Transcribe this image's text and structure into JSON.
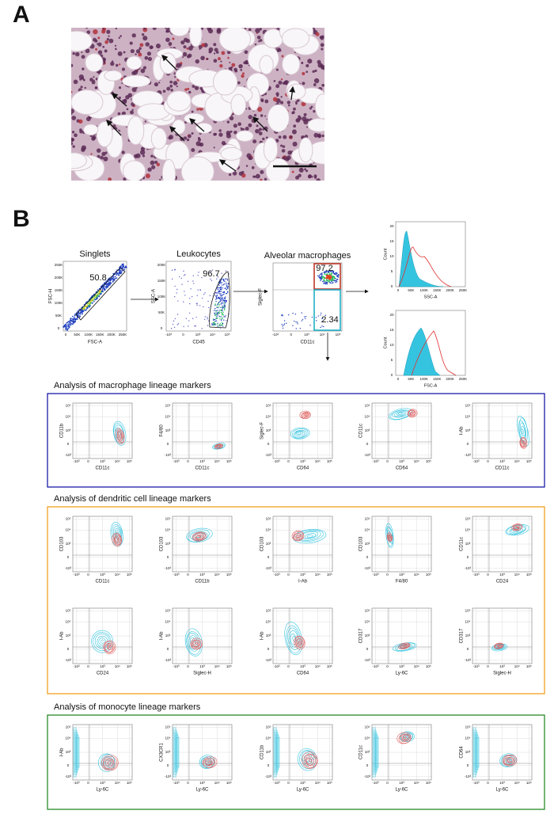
{
  "panel_a": {
    "label": "A"
  },
  "panel_b": {
    "label": "B",
    "gating": [
      {
        "title": "Singlets",
        "x_label": "FSC-A",
        "y_label": "FSC-H",
        "gates": [
          "50.8"
        ]
      },
      {
        "title": "Leukocytes",
        "x_label": "CD45",
        "y_label": "SSC-A",
        "gates": [
          "96.7"
        ]
      },
      {
        "title": "Alveolar macrophages",
        "x_label": "CD11c",
        "y_label": "Siglec-F",
        "gates": [
          "97.2",
          "2.34"
        ]
      }
    ],
    "linear_ticks": [
      "0",
      "50K",
      "100K",
      "150K",
      "200K",
      "250K"
    ],
    "log_ticks": [
      "-10³",
      "0",
      "10³",
      "10⁴",
      "10⁵"
    ],
    "histograms": [
      {
        "x_label": "SSC-A",
        "y_label": "Count"
      },
      {
        "x_label": "FSC-A",
        "y_label": "Count"
      }
    ],
    "count_ticks": [
      "0",
      "5",
      "10",
      "15",
      "20"
    ],
    "sections": [
      {
        "title": "Analysis of macrophage lineage markers",
        "rows": [
          [
            {
              "x": "CD11c",
              "y": "CD11b"
            },
            {
              "x": "CD11c",
              "y": "F4/80"
            },
            {
              "x": "CD64",
              "y": "Siglec-F"
            },
            {
              "x": "CD64",
              "y": "CD11c"
            },
            {
              "x": "CD11c",
              "y": "I-Ab"
            }
          ]
        ]
      },
      {
        "title": "Analysis of dendritic cell lineage markers",
        "rows": [
          [
            {
              "x": "CD11c",
              "y": "CD103"
            },
            {
              "x": "CD11b",
              "y": "CD103"
            },
            {
              "x": "I-Ab",
              "y": "CD103"
            },
            {
              "x": "F4/80",
              "y": "CD103"
            },
            {
              "x": "CD24",
              "y": "CD11c"
            }
          ],
          [
            {
              "x": "CD24",
              "y": "I-Ab"
            },
            {
              "x": "Siglec-H",
              "y": "I-Ab"
            },
            {
              "x": "CD64",
              "y": "I-Ab"
            },
            {
              "x": "Ly-6C",
              "y": "CD317"
            },
            {
              "x": "Siglec-H",
              "y": "CD317"
            }
          ]
        ]
      },
      {
        "title": "Analysis of monocyte lineage markers",
        "rows": [
          [
            {
              "x": "Ly-6C",
              "y": "I-Ab"
            },
            {
              "x": "Ly-6C",
              "y": "CX3CR1"
            },
            {
              "x": "Ly-6C",
              "y": "CD11b"
            },
            {
              "x": "Ly-6C",
              "y": "CD11c"
            },
            {
              "x": "Ly-6C",
              "y": "CD64"
            }
          ]
        ]
      }
    ]
  }
}
